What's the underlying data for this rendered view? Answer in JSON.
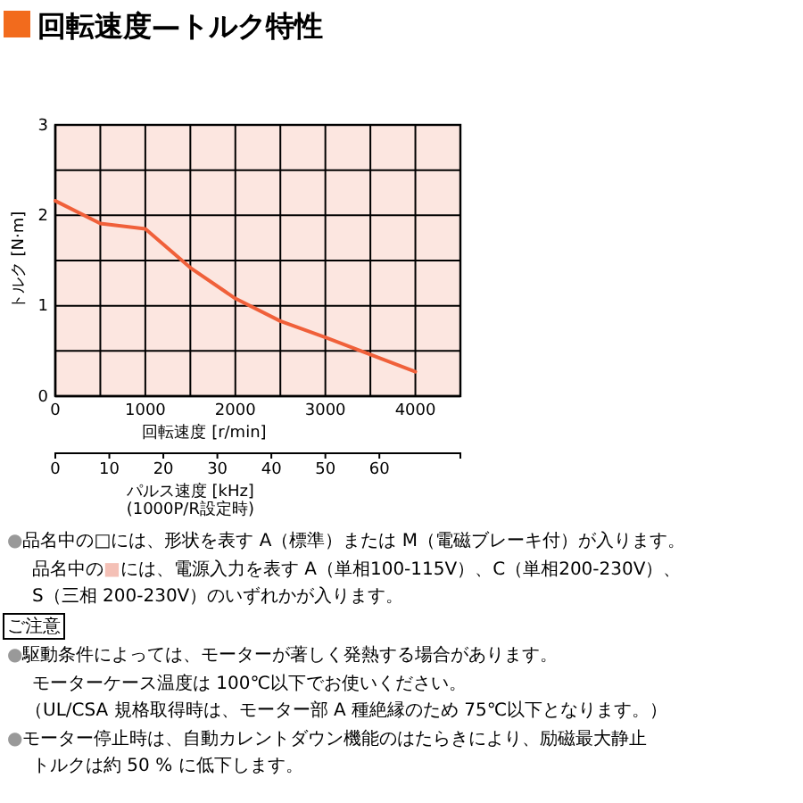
{
  "chart_data": {
    "type": "line",
    "title": "回転速度—トルク特性",
    "xlabel": "回転速度 [r/min]",
    "ylabel": "トルク [N·m]",
    "x2label": "パルス速度 [kHz]\n(1000P/R設定時)",
    "x": [
      0,
      500,
      1000,
      1500,
      2000,
      2500,
      3000,
      3500,
      4000
    ],
    "series": [
      {
        "color": "#f0603a",
        "values": [
          2.16,
          1.91,
          1.85,
          1.42,
          1.08,
          0.83,
          0.65,
          0.46,
          0.27
        ]
      }
    ],
    "xlim": [
      0,
      4500
    ],
    "xticks": [
      0,
      1000,
      2000,
      3000,
      4000
    ],
    "x2lim": [
      0,
      75
    ],
    "x2ticks": [
      0,
      10,
      20,
      30,
      40,
      50,
      60
    ],
    "ylim": [
      0,
      3
    ],
    "yticks": [
      0,
      1,
      2,
      3
    ],
    "grid": true,
    "marker": "none",
    "line_style": "solid",
    "annotations": [
      "●品名中の□には、形状を表す A（標準）または M（電磁ブレーキ付）が入ります。",
      "品名中の■には、電源入力を表す A（単相100-115V）、C（単相200-230V）、",
      "S（三相 200-230V）のいずれかが入ります。",
      "ご注意",
      "●駆動条件によっては、モーターが著しく発熱する場合があります。",
      "モーターケース温度は 100℃以下でお使いください。",
      "（UL/CSA 規格取得時は、モーター部 A 種絶縁のため 75℃以下となります。）",
      "●モーター停止時は、自動カレントダウン機能のはたらきにより、励磁最大静止",
      "トルクは約 50 % に低下します。"
    ]
  }
}
